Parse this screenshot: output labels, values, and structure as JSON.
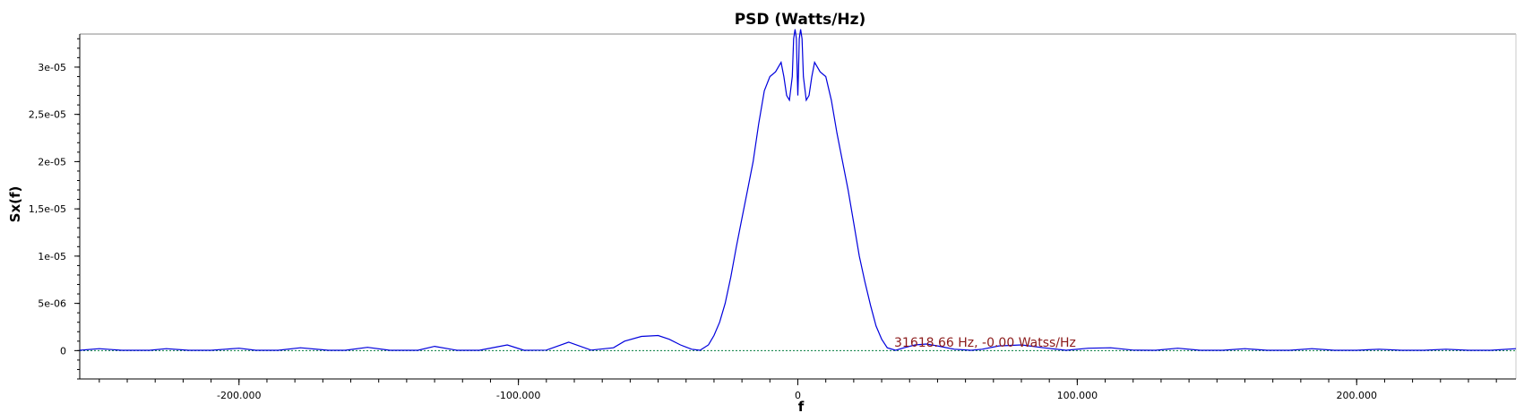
{
  "chart_data": {
    "type": "line",
    "title": "PSD (Watts/Hz)",
    "xlabel": "f",
    "ylabel": "Sx(f)",
    "xlim": [
      -257000,
      257000
    ],
    "ylim": [
      -3e-06,
      3.35e-05
    ],
    "x_tick_values": [
      -200000,
      -100000,
      0,
      100000,
      200000
    ],
    "x_tick_labels": [
      "-200.000",
      "-100.000",
      "0",
      "100.000",
      "200.000"
    ],
    "y_tick_values": [
      0,
      5e-06,
      1e-05,
      1.5e-05,
      2e-05,
      2.5e-05,
      3e-05
    ],
    "y_tick_labels": [
      "0",
      "5e-06",
      "1e-05",
      "1,5e-05",
      "2e-05",
      "2,5e-05",
      "3e-05"
    ],
    "grid": false,
    "series": [
      {
        "color": "#0000dd",
        "x": [
          -257000,
          -250000,
          -242000,
          -232000,
          -226000,
          -218000,
          -210000,
          -200000,
          -194000,
          -186000,
          -178000,
          -168000,
          -162000,
          -154000,
          -146000,
          -136000,
          -130000,
          -122000,
          -114000,
          -104000,
          -98000,
          -90000,
          -82000,
          -74000,
          -66000,
          -62000,
          -56000,
          -50000,
          -46000,
          -42000,
          -38000,
          -35000,
          -32000,
          -30000,
          -28000,
          -26000,
          -24000,
          -22000,
          -20000,
          -18000,
          -16000,
          -14000,
          -12000,
          -10000,
          -8000,
          -6000,
          -5000,
          -4000,
          -3000,
          -2000,
          -1500,
          -1000,
          -500,
          -200,
          0,
          200,
          500,
          1000,
          1500,
          2000,
          3000,
          4000,
          5000,
          6000,
          8000,
          10000,
          12000,
          14000,
          16000,
          18000,
          20000,
          22000,
          24000,
          26000,
          28000,
          30000,
          32000,
          35000,
          38000,
          42000,
          46000,
          50000,
          56000,
          62000,
          66000,
          72000,
          80000,
          88000,
          96000,
          104000,
          112000,
          120000,
          128000,
          136000,
          144000,
          152000,
          160000,
          168000,
          176000,
          184000,
          192000,
          200000,
          208000,
          216000,
          224000,
          232000,
          240000,
          248000,
          257000
        ],
        "y": [
          3e-08,
          2e-07,
          3e-08,
          3e-08,
          2e-07,
          3e-08,
          3e-08,
          2.5e-07,
          3e-08,
          3e-08,
          3e-07,
          3e-08,
          3e-08,
          3.5e-07,
          3e-08,
          3e-08,
          4.5e-07,
          3e-08,
          3e-08,
          6e-07,
          3e-08,
          5e-08,
          9e-07,
          5e-08,
          3e-07,
          1e-06,
          1.5e-06,
          1.6e-06,
          1.2e-06,
          6e-07,
          1.5e-07,
          3e-08,
          6e-07,
          1.6e-06,
          3e-06,
          5e-06,
          7.8e-06,
          1.1e-05,
          1.4e-05,
          1.7e-05,
          2e-05,
          2.4e-05,
          2.75e-05,
          2.9e-05,
          2.95e-05,
          3.05e-05,
          2.9e-05,
          2.7e-05,
          2.65e-05,
          2.9e-05,
          3.3e-05,
          3.4e-05,
          3.3e-05,
          2.9e-05,
          2.7e-05,
          2.9e-05,
          3.3e-05,
          3.4e-05,
          3.3e-05,
          2.9e-05,
          2.65e-05,
          2.7e-05,
          2.9e-05,
          3.05e-05,
          2.95e-05,
          2.9e-05,
          2.65e-05,
          2.3e-05,
          2e-05,
          1.7e-05,
          1.35e-05,
          1e-05,
          7.3e-06,
          4.8e-06,
          2.6e-06,
          1.2e-06,
          3e-07,
          3e-08,
          3e-07,
          6e-07,
          7e-07,
          5e-07,
          1.5e-07,
          3e-08,
          1.5e-07,
          5e-07,
          6e-07,
          3e-07,
          3e-08,
          2.5e-07,
          3e-07,
          5e-08,
          3e-08,
          2.5e-07,
          3e-08,
          3e-08,
          2e-07,
          3e-08,
          3e-08,
          2e-07,
          3e-08,
          3e-08,
          1.5e-07,
          3e-08,
          3e-08,
          1.5e-07,
          3e-08,
          3e-08,
          2e-07
        ]
      }
    ],
    "baseline": {
      "y": 0,
      "color": "#007a3d"
    },
    "marker_text": "31618.66 Hz, -0.00 Watss/Hz",
    "marker_color": "#8b1a1a"
  }
}
